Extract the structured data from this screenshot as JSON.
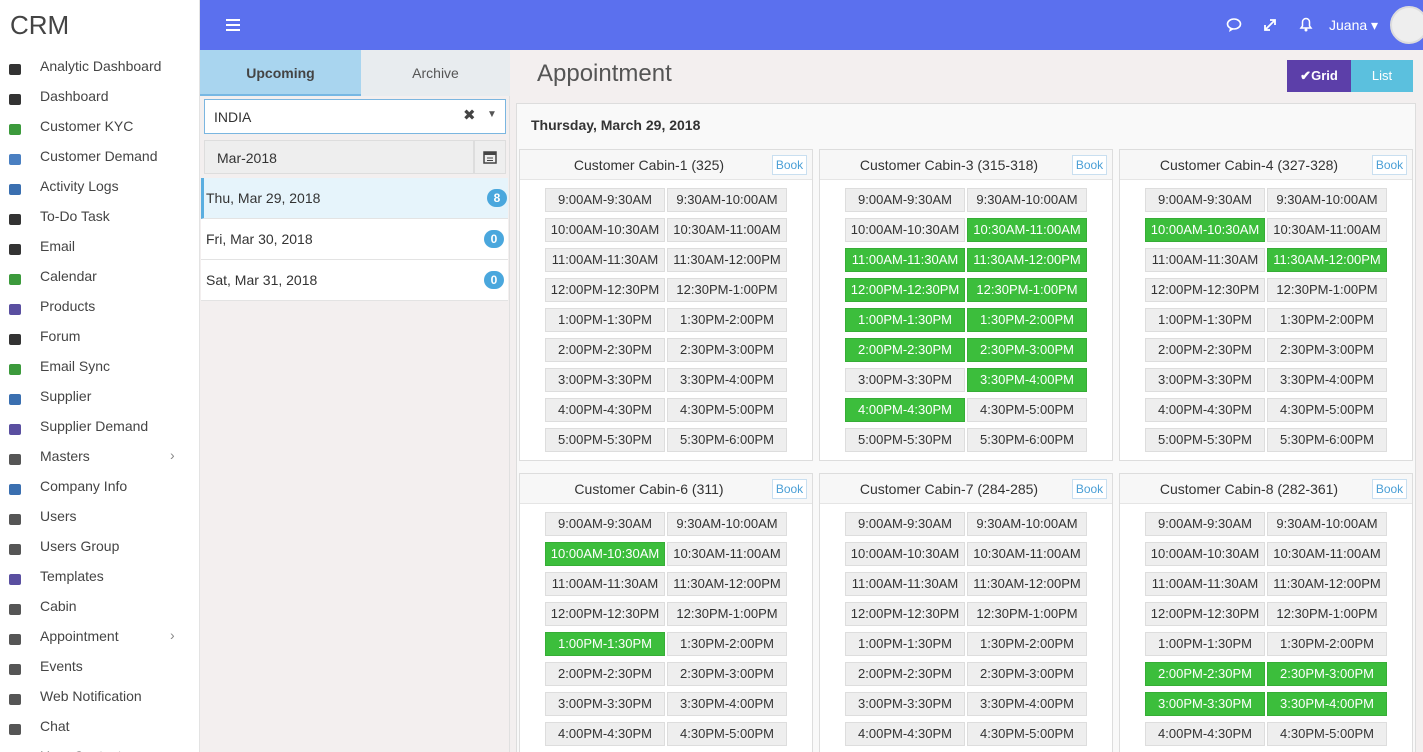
{
  "brand": "CRM",
  "sidebar": {
    "items": [
      "Analytic Dashboard",
      "Dashboard",
      "Customer KYC",
      "Customer Demand",
      "Activity Logs",
      "To-Do Task",
      "Email",
      "Calendar",
      "Products",
      "Forum",
      "Email Sync",
      "Supplier",
      "Supplier Demand",
      "Masters",
      "Company Info",
      "Users",
      "Users Group",
      "Templates",
      "Cabin",
      "Appointment",
      "Events",
      "Web Notification",
      "Chat",
      "User Contact"
    ],
    "expandable": [
      13,
      19
    ]
  },
  "topbar": {
    "user": "Juana"
  },
  "tabs": [
    "Upcoming",
    "Archive"
  ],
  "filters": {
    "country": "INDIA",
    "month": "Mar-2018"
  },
  "dates": [
    {
      "label": "Thu, Mar 29, 2018",
      "count": 8
    },
    {
      "label": "Fri, Mar 30, 2018",
      "count": 0
    },
    {
      "label": "Sat, Mar 31, 2018",
      "count": 0
    }
  ],
  "page": {
    "title": "Appointment",
    "views": [
      "Grid",
      "List"
    ],
    "day": "Thursday, March 29, 2018",
    "book_label": "Book"
  },
  "slots": [
    "9:00AM-9:30AM",
    "9:30AM-10:00AM",
    "10:00AM-10:30AM",
    "10:30AM-11:00AM",
    "11:00AM-11:30AM",
    "11:30AM-12:00PM",
    "12:00PM-12:30PM",
    "12:30PM-1:00PM",
    "1:00PM-1:30PM",
    "1:30PM-2:00PM",
    "2:00PM-2:30PM",
    "2:30PM-3:00PM",
    "3:00PM-3:30PM",
    "3:30PM-4:00PM",
    "4:00PM-4:30PM",
    "4:30PM-5:00PM",
    "5:00PM-5:30PM",
    "5:30PM-6:00PM"
  ],
  "cabins": [
    {
      "name": "Customer Cabin-1 (325)",
      "booked": []
    },
    {
      "name": "Customer Cabin-3 (315-318)",
      "booked": [
        3,
        4,
        5,
        6,
        7,
        8,
        9,
        10,
        11,
        13,
        14
      ]
    },
    {
      "name": "Customer Cabin-4 (327-328)",
      "booked": [
        2,
        5
      ]
    },
    {
      "name": "Customer Cabin-6 (311)",
      "booked": [
        2,
        8
      ]
    },
    {
      "name": "Customer Cabin-7 (284-285)",
      "booked": []
    },
    {
      "name": "Customer Cabin-8 (282-361)",
      "booked": [
        10,
        11,
        12,
        13
      ]
    }
  ]
}
